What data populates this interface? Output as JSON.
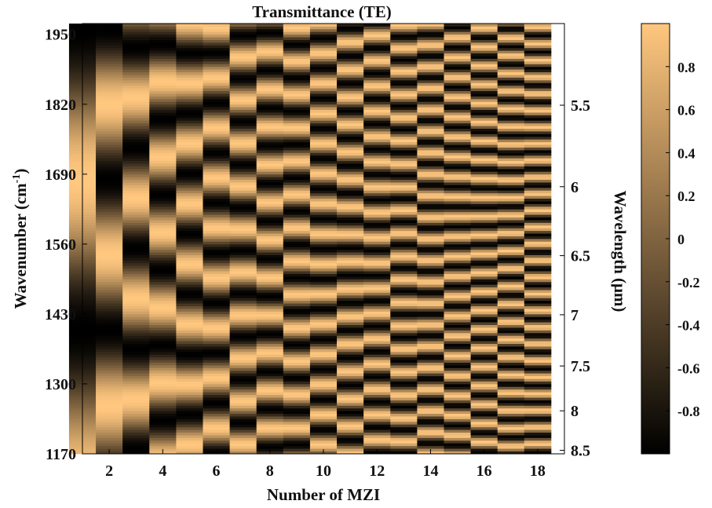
{
  "chart_data": {
    "type": "heatmap",
    "title": "Transmittance (TE)",
    "xlabel": "Number of MZI",
    "ylabel_left": "Wavenumber",
    "ylabel_left_unit": "(cm",
    "ylabel_left_sup": "-1",
    "ylabel_left_close": ")",
    "ylabel_right": "Wavelength (μm)",
    "x_range": [
      1,
      19
    ],
    "y_range_wavenumber": [
      1170,
      1970
    ],
    "x_ticks": [
      2,
      4,
      6,
      8,
      10,
      12,
      14,
      16,
      18
    ],
    "x_tick_labels": [
      "2",
      "4",
      "6",
      "8",
      "10",
      "12",
      "14",
      "16",
      "18"
    ],
    "y_left_ticks": [
      1170,
      1300,
      1430,
      1560,
      1690,
      1820,
      1950
    ],
    "y_left_tick_labels": [
      "1170",
      "1300",
      "1430",
      "1560",
      "1690",
      "1820",
      "1950"
    ],
    "y_right_ticks": [
      5.5,
      6,
      6.5,
      7,
      7.5,
      8,
      8.5
    ],
    "y_right_tick_labels": [
      "5.5",
      "6",
      "6.5",
      "7",
      "7.5",
      "8",
      "8.5"
    ],
    "colorbar": {
      "range": [
        -1,
        1
      ],
      "ticks": [
        0.8,
        0.6,
        0.4,
        0.2,
        0,
        -0.2,
        -0.4,
        -0.6,
        -0.8
      ],
      "tick_labels": [
        "0.8",
        "0.6",
        "0.4",
        "0.2",
        "0",
        "-0.2",
        "-0.4",
        "-0.6",
        "-0.8"
      ],
      "colormap": "copper",
      "color_low": "#000000",
      "color_high": "#ffc77f"
    },
    "columns": [
      {
        "mzi": 1,
        "period_cm": 560,
        "phase": 0.0
      },
      {
        "mzi": 2,
        "period_cm": 280,
        "phase": 0.5
      },
      {
        "mzi": 3,
        "period_cm": 187,
        "phase": 0.2
      },
      {
        "mzi": 4,
        "period_cm": 140,
        "phase": 0.7
      },
      {
        "mzi": 5,
        "period_cm": 112,
        "phase": 0.4
      },
      {
        "mzi": 6,
        "period_cm": 93,
        "phase": 0.9
      },
      {
        "mzi": 7,
        "period_cm": 80,
        "phase": 0.15
      },
      {
        "mzi": 8,
        "period_cm": 70,
        "phase": 0.6
      },
      {
        "mzi": 9,
        "period_cm": 62,
        "phase": 0.35
      },
      {
        "mzi": 10,
        "period_cm": 56,
        "phase": 0.8
      },
      {
        "mzi": 11,
        "period_cm": 51,
        "phase": 0.05
      },
      {
        "mzi": 12,
        "period_cm": 47,
        "phase": 0.55
      },
      {
        "mzi": 13,
        "period_cm": 43,
        "phase": 0.25
      },
      {
        "mzi": 14,
        "period_cm": 40,
        "phase": 0.75
      },
      {
        "mzi": 15,
        "period_cm": 37,
        "phase": 0.45
      },
      {
        "mzi": 16,
        "period_cm": 35,
        "phase": 0.95
      },
      {
        "mzi": 17,
        "period_cm": 33,
        "phase": 0.1
      },
      {
        "mzi": 18,
        "period_cm": 31,
        "phase": 0.65
      }
    ]
  }
}
